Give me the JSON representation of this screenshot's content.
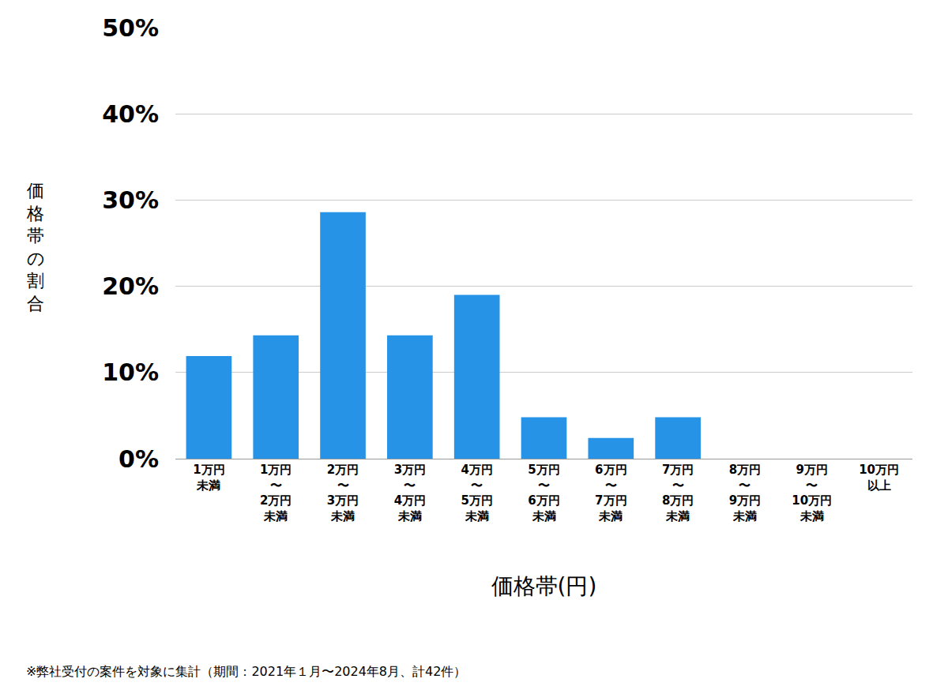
{
  "chart_data": {
    "type": "bar",
    "xlabel": "価格帯(円)",
    "ylabel": "価格帯の割合",
    "note": "※弊社受付の案件を対象に集計（期間：2021年１月〜2024年8月、計42件）",
    "categories": [
      "1万円\n未満",
      "1万円\n〜\n2万円\n未満",
      "2万円\n〜\n3万円\n未満",
      "3万円\n〜\n4万円\n未満",
      "4万円\n〜\n5万円\n未満",
      "5万円\n〜\n6万円\n未満",
      "6万円\n〜\n7万円\n未満",
      "7万円\n〜\n8万円\n未満",
      "8万円\n〜\n9万円\n未満",
      "9万円\n〜\n10万円\n未満",
      "10万円\n以上"
    ],
    "values": [
      11.9,
      14.3,
      28.6,
      14.3,
      19.0,
      4.8,
      2.4,
      4.8,
      0,
      0,
      0
    ],
    "color": "#2693e6",
    "ylim": [
      0,
      50
    ],
    "yticks": [
      {
        "value": 0,
        "label": "0%"
      },
      {
        "value": 10,
        "label": "10%"
      },
      {
        "value": 20,
        "label": "20%"
      },
      {
        "value": 30,
        "label": "30%"
      },
      {
        "value": 40,
        "label": "40%"
      },
      {
        "value": 50,
        "label": "50%"
      }
    ],
    "grid": true
  }
}
